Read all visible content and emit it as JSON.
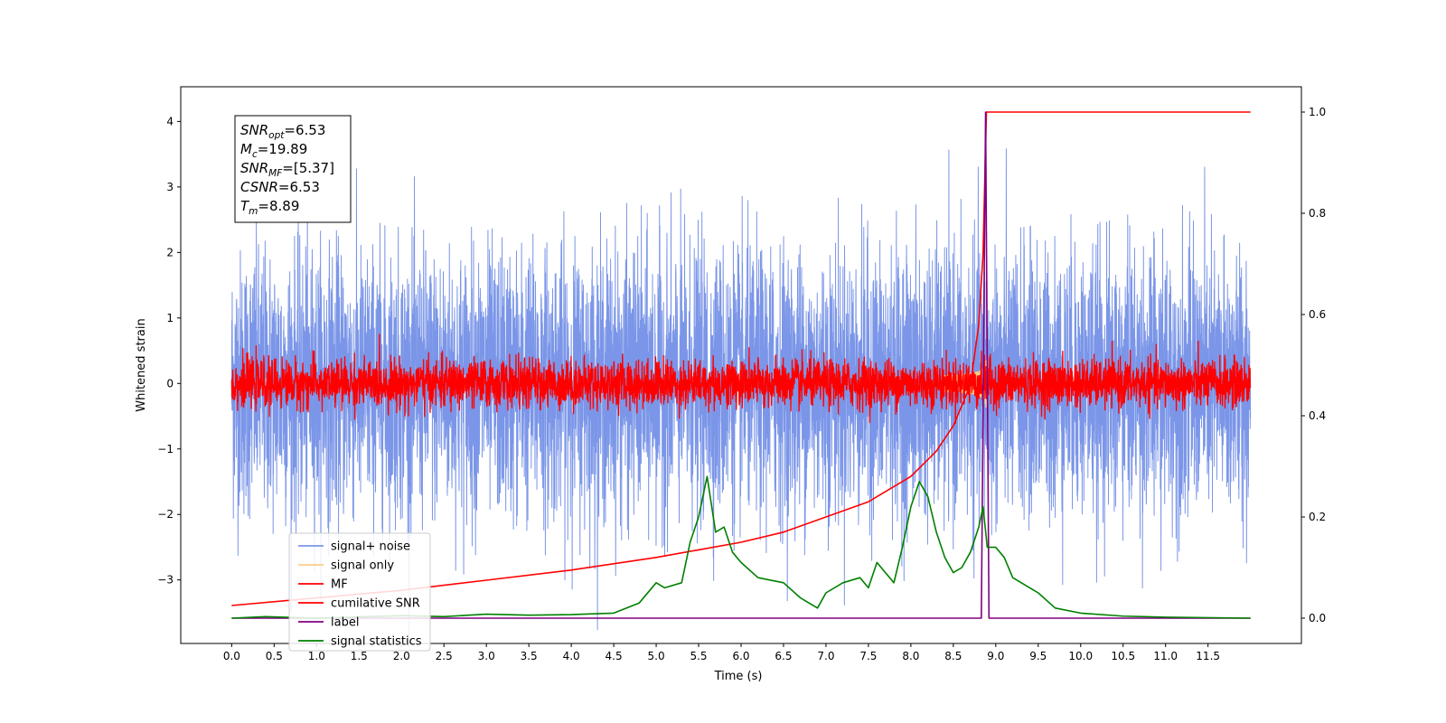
{
  "chart_data": {
    "type": "line",
    "xlabel": "Time (s)",
    "ylabel": "Whitened strain",
    "xlim": [
      -0.6,
      12.6
    ],
    "ylim": [
      -3.97,
      4.53
    ],
    "y2lim": [
      -0.05,
      1.05
    ],
    "x_ticks": [
      "0.0",
      "0.5",
      "1.0",
      "1.5",
      "2.0",
      "2.5",
      "3.0",
      "3.5",
      "4.0",
      "4.5",
      "5.0",
      "5.5",
      "6.0",
      "6.5",
      "7.0",
      "7.5",
      "8.0",
      "8.5",
      "9.0",
      "9.5",
      "10.0",
      "10.5",
      "11.0",
      "11.5"
    ],
    "y_ticks": [
      "−3",
      "−2",
      "−1",
      "0",
      "1",
      "2",
      "3",
      "4"
    ],
    "y2_ticks": [
      "0.0",
      "0.2",
      "0.4",
      "0.6",
      "0.8",
      "1.0"
    ],
    "grid": false,
    "legend_position": "lower-left",
    "annotation": {
      "lines": [
        {
          "base": "SNR",
          "sub": "opt",
          "value": "=6.53"
        },
        {
          "base": "M",
          "sub": "c",
          "value": "=19.89"
        },
        {
          "base": "SNR",
          "sub": "MF",
          "value": "=[5.37]"
        },
        {
          "base": "CSNR",
          "sub": "",
          "value": "=6.53"
        },
        {
          "base": "T",
          "sub": "m",
          "value": "=8.89"
        }
      ]
    },
    "series": [
      {
        "name": "signal+ noise",
        "color": "#7b96e8",
        "axis": "left",
        "kind": "noise",
        "amplitude_std": 1.0,
        "x_range": [
          0.0,
          12.0
        ]
      },
      {
        "name": "signal only",
        "color": "#f7cf8a",
        "axis": "left",
        "kind": "chirp",
        "peak_time": 8.89,
        "peak_amplitude": 0.4
      },
      {
        "name": "MF",
        "color": "#ff0000",
        "axis": "left",
        "kind": "noise",
        "amplitude_std": 0.18,
        "x_range": [
          0.0,
          12.0
        ]
      },
      {
        "name": "cumilative SNR",
        "color": "#ff0000",
        "axis": "right",
        "x": [
          0.0,
          1.0,
          2.0,
          3.0,
          4.0,
          5.0,
          5.5,
          6.0,
          6.5,
          7.0,
          7.5,
          8.0,
          8.3,
          8.5,
          8.7,
          8.8,
          8.85,
          8.89,
          9.0,
          10.0,
          11.0,
          12.0
        ],
        "y": [
          0.025,
          0.04,
          0.055,
          0.075,
          0.095,
          0.12,
          0.135,
          0.15,
          0.17,
          0.2,
          0.23,
          0.28,
          0.33,
          0.38,
          0.46,
          0.58,
          0.72,
          1.0,
          1.0,
          1.0,
          1.0,
          1.0
        ]
      },
      {
        "name": "label",
        "color": "#800080",
        "axis": "right",
        "x": [
          0.0,
          8.83,
          8.88,
          8.92,
          12.0
        ],
        "y": [
          0.0,
          0.0,
          1.0,
          0.0,
          0.0
        ]
      },
      {
        "name": "signal statistics",
        "color": "#008000",
        "axis": "right",
        "x": [
          0.0,
          0.4,
          1.0,
          2.0,
          2.5,
          3.0,
          3.5,
          4.0,
          4.5,
          4.8,
          5.0,
          5.1,
          5.3,
          5.4,
          5.5,
          5.6,
          5.7,
          5.8,
          5.9,
          6.0,
          6.2,
          6.5,
          6.7,
          6.9,
          7.0,
          7.2,
          7.4,
          7.5,
          7.6,
          7.8,
          7.9,
          8.0,
          8.1,
          8.2,
          8.3,
          8.4,
          8.5,
          8.6,
          8.7,
          8.8,
          8.85,
          8.9,
          9.0,
          9.1,
          9.2,
          9.3,
          9.5,
          9.7,
          10.0,
          10.5,
          11.0,
          12.0
        ],
        "y": [
          0.0,
          0.003,
          0.0,
          0.005,
          0.003,
          0.008,
          0.006,
          0.007,
          0.01,
          0.03,
          0.07,
          0.06,
          0.07,
          0.15,
          0.2,
          0.28,
          0.17,
          0.18,
          0.13,
          0.11,
          0.08,
          0.07,
          0.04,
          0.02,
          0.05,
          0.07,
          0.08,
          0.06,
          0.11,
          0.07,
          0.14,
          0.22,
          0.27,
          0.24,
          0.17,
          0.12,
          0.09,
          0.1,
          0.13,
          0.18,
          0.22,
          0.14,
          0.14,
          0.12,
          0.08,
          0.07,
          0.05,
          0.02,
          0.01,
          0.004,
          0.002,
          0.0
        ]
      }
    ]
  }
}
